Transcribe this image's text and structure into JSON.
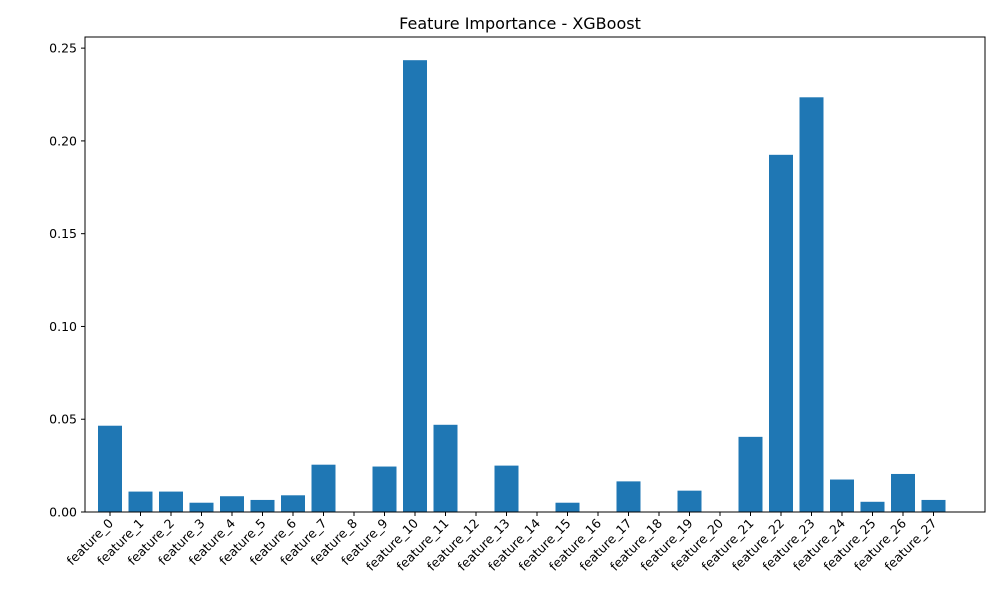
{
  "chart_data": {
    "type": "bar",
    "title": "Feature Importance - XGBoost",
    "xlabel": "",
    "ylabel": "",
    "ylim": [
      0,
      0.256
    ],
    "yticks": [
      "0.00",
      "0.05",
      "0.10",
      "0.15",
      "0.20",
      "0.25"
    ],
    "grid": false,
    "legend": "none",
    "bar_color": "#1f77b4",
    "categories": [
      "feature_0",
      "feature_1",
      "feature_2",
      "feature_3",
      "feature_4",
      "feature_5",
      "feature_6",
      "feature_7",
      "feature_8",
      "feature_9",
      "feature_10",
      "feature_11",
      "feature_12",
      "feature_13",
      "feature_14",
      "feature_15",
      "feature_16",
      "feature_17",
      "feature_18",
      "feature_19",
      "feature_20",
      "feature_21",
      "feature_22",
      "feature_23",
      "feature_24",
      "feature_25",
      "feature_26",
      "feature_27"
    ],
    "values": [
      0.0465,
      0.011,
      0.011,
      0.005,
      0.0085,
      0.0065,
      0.009,
      0.0255,
      0.0,
      0.0245,
      0.2435,
      0.047,
      0.0,
      0.025,
      0.0,
      0.005,
      0.0,
      0.0165,
      0.0,
      0.0115,
      0.0,
      0.0405,
      0.1925,
      0.2235,
      0.0175,
      0.0055,
      0.0205,
      0.0065
    ]
  }
}
